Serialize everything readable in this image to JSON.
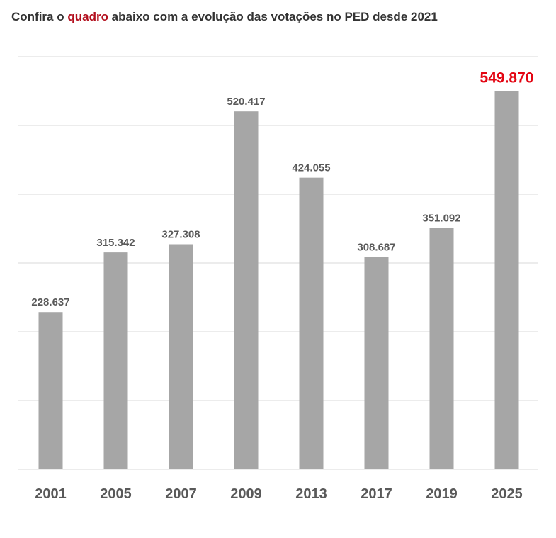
{
  "headline": {
    "before": "Confira o ",
    "highlight": "quadro",
    "after": " abaixo com a evolução das votações no PED desde 2021"
  },
  "colors": {
    "bar": "#a6a6a6",
    "label": "#595959",
    "highlight_label": "#e30613",
    "highlight_link": "#b3101e",
    "grid": "#d9d9d9"
  },
  "chart_data": {
    "type": "bar",
    "categories": [
      "2001",
      "2005",
      "2007",
      "2009",
      "2013",
      "2017",
      "2019",
      "2025"
    ],
    "values": [
      228637,
      315342,
      327308,
      520417,
      424055,
      308687,
      351092,
      549870
    ],
    "value_labels": [
      "228.637",
      "315.342",
      "327.308",
      "520.417",
      "424.055",
      "308.687",
      "351.092",
      "549.870"
    ],
    "highlight_category": "2025",
    "title": "",
    "xlabel": "",
    "ylabel": "",
    "ylim": [
      0,
      600000
    ],
    "gridlines": true,
    "legend": "none"
  }
}
